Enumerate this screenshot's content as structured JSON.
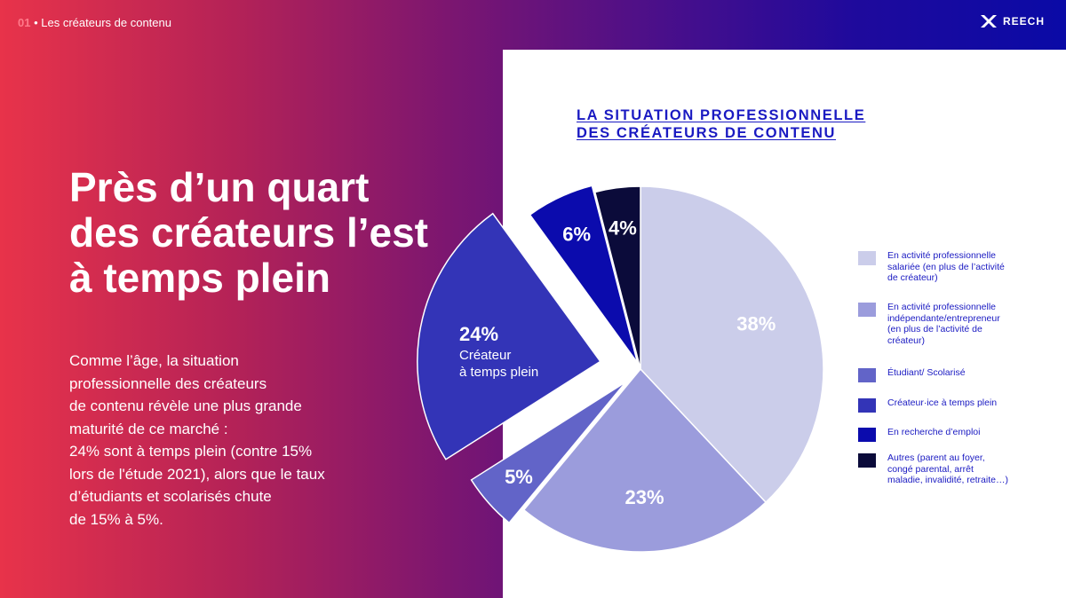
{
  "header": {
    "section_number": "01",
    "section_title": "Les créateurs de contenu",
    "logo_text": "REECH"
  },
  "headline": {
    "line1": "Près d’un quart",
    "line2": "des créateurs l’est",
    "line3": "à temps plein"
  },
  "body": {
    "lines": [
      "Comme l’âge, la situation",
      "professionnelle des créateurs",
      "de contenu révèle une plus grande",
      "maturité de ce marché :",
      "24% sont à temps plein (contre 15%",
      "lors de l'étude 2021), alors que le taux",
      "d’étudiants et scolarisés chute",
      "de 15% à 5%."
    ]
  },
  "chart_title": {
    "line1": "LA SITUATION PROFESSIONNELLE",
    "line2": "DES CRÉATEURS DE CONTENU"
  },
  "chart_data": {
    "type": "pie",
    "categories": [
      "En activité professionnelle salariée (en plus de l’activité de créateur)",
      "En activité professionnelle indépendante/entrepreneur (en plus de l’activité de créateur)",
      "Étudiant/ Scolarisé",
      "Créateur·ice à temps plein",
      "En recherche d’emploi",
      "Autres (parent au foyer, congé parental, arrêt maladie, invalidité, retraite…)"
    ],
    "values": [
      38,
      23,
      5,
      24,
      6,
      4
    ],
    "labels": [
      "38%",
      "23%",
      "5%",
      "24%",
      "6%",
      "4%"
    ],
    "highlight_sublabel": [
      "Créateur",
      "à temps plein"
    ],
    "colors": [
      "#cbcdea",
      "#9b9cdc",
      "#6264c8",
      "#3334b7",
      "#0b0bad",
      "#0b0b3a"
    ],
    "label_colors": [
      "#ffffff",
      "#ffffff",
      "#ffffff",
      "#ffffff",
      "#ffffff",
      "#ffffff"
    ],
    "legend_position": "right"
  },
  "legend": {
    "items": [
      {
        "lines": [
          "En activité professionnelle",
          "salariée (en plus de l’activité",
          "de créateur)"
        ],
        "color": "#cbcdea"
      },
      {
        "lines": [
          "En activité professionnelle",
          "indépendante/entrepreneur",
          "(en plus de l’activité de",
          "créateur)"
        ],
        "color": "#9b9cdc"
      },
      {
        "lines": [
          "Étudiant/ Scolarisé"
        ],
        "color": "#6264c8"
      },
      {
        "lines": [
          "Créateur·ice à temps plein"
        ],
        "color": "#3334b7"
      },
      {
        "lines": [
          "En recherche d’emploi"
        ],
        "color": "#0b0bad"
      },
      {
        "lines": [
          "Autres (parent au foyer,",
          "congé parental, arrêt",
          "maladie, invalidité, retraite…)"
        ],
        "color": "#0b0b3a"
      }
    ]
  }
}
